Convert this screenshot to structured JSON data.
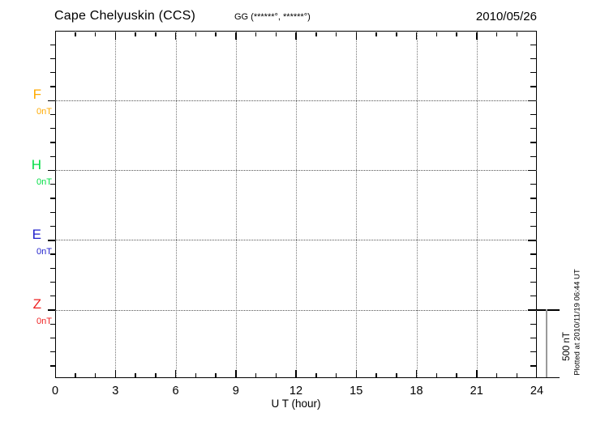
{
  "header": {
    "station": "Cape Chelyuskin (CCS)",
    "coordinates": "GG (******°, ******°)",
    "date": "2010/05/26"
  },
  "channels": [
    {
      "label": "F",
      "baseline_value": "0nT",
      "color": "#ffaa00"
    },
    {
      "label": "H",
      "baseline_value": "0nT",
      "color": "#00dd44"
    },
    {
      "label": "E",
      "baseline_value": "0nT",
      "color": "#2222cc"
    },
    {
      "label": "Z",
      "baseline_value": "0nT",
      "color": "#ee2222"
    }
  ],
  "x_axis": {
    "label": "U T (hour)",
    "tick_labels": [
      "0",
      "3",
      "6",
      "9",
      "12",
      "15",
      "18",
      "21",
      "24"
    ]
  },
  "scale_bar": {
    "label": "500 nT"
  },
  "plot_note": "Plotted at 2010/11/19 06:44 UT",
  "chart_data": {
    "type": "line",
    "title": "Cape Chelyuskin (CCS)",
    "subtitle": "GG (******°, ******°)",
    "date": "2010/05/26",
    "xlabel": "U T (hour)",
    "xlim": [
      0,
      24
    ],
    "x_ticks": [
      0,
      3,
      6,
      9,
      12,
      15,
      18,
      21,
      24
    ],
    "x_minor_tick_hours": 1,
    "grid": "dotted vertical lines every 3 hours; dotted horizontal line at each channel baseline",
    "legend_position": "left margin, one colored label per channel",
    "y_scale_bar_nT": 500,
    "y_minor_tick_nT": 100,
    "series": [
      {
        "name": "F",
        "baseline_nT": 0,
        "baseline_label": "0nT",
        "color": "#ffaa00",
        "values": []
      },
      {
        "name": "H",
        "baseline_nT": 0,
        "baseline_label": "0nT",
        "color": "#00dd44",
        "values": []
      },
      {
        "name": "E",
        "baseline_nT": 0,
        "baseline_label": "0nT",
        "color": "#2222cc",
        "values": []
      },
      {
        "name": "Z",
        "baseline_nT": 0,
        "baseline_label": "0nT",
        "color": "#ee2222",
        "values": []
      }
    ],
    "note": "No data traces are drawn; only empty baselines for this day"
  }
}
